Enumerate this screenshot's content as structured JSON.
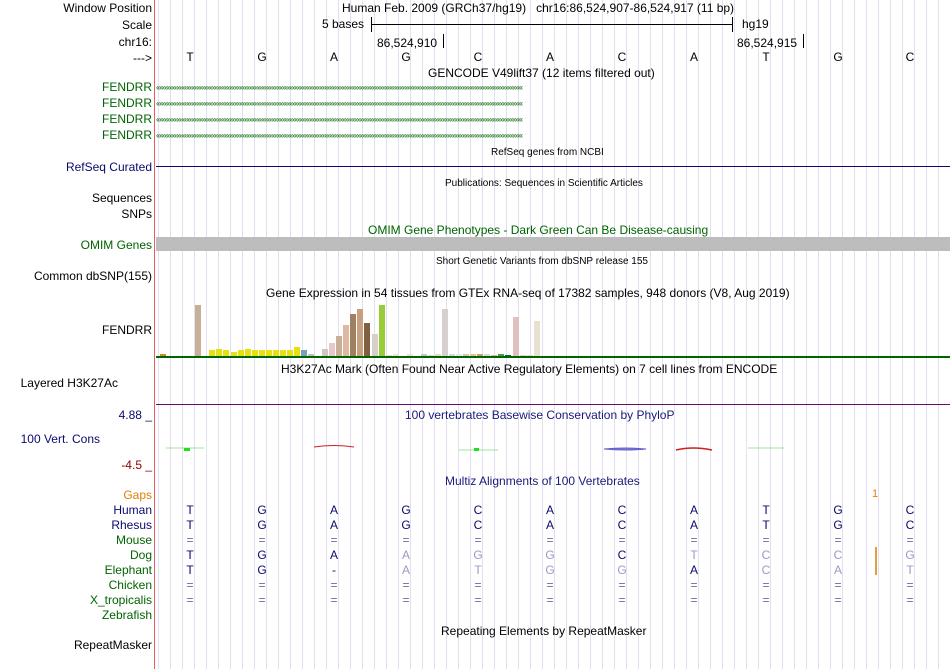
{
  "header": {
    "window_position_label": "Window Position",
    "scale_label": "Scale",
    "chrom_label": "chr16:",
    "strand_label": "--->",
    "assembly_text": "Human Feb. 2009 (GRCh37/hg19)",
    "position_text": "chr16:86,524,907-86,524,917 (11 bp)",
    "scale_text": "5 bases",
    "scale_db": "hg19",
    "coord_1": "86,524,910",
    "coord_2": "86,524,915"
  },
  "bases": [
    "T",
    "G",
    "A",
    "G",
    "C",
    "A",
    "C",
    "A",
    "T",
    "G",
    "C"
  ],
  "tracks": {
    "gencode": {
      "title": "GENCODE V49lift37 (12 items filtered out)",
      "genes": [
        "FENDRR",
        "FENDRR",
        "FENDRR",
        "FENDRR"
      ]
    },
    "refseq": {
      "title": "RefSeq genes from NCBI",
      "label": "RefSeq Curated"
    },
    "publications": {
      "title": "Publications: Sequences in Scientific Articles",
      "label_1": "Sequences",
      "label_2": "SNPs"
    },
    "omim": {
      "title": "OMIM Gene Phenotypes - Dark Green Can Be Disease-causing",
      "label": "OMIM Genes"
    },
    "dbsnp": {
      "title": "Short Genetic Variants from dbSNP release 155",
      "label": "Common dbSNP(155)"
    },
    "gtex": {
      "title": "Gene Expression in 54 tissues from GTEx RNA-seq of 17382 samples, 948 donors (V8, Aug 2019)",
      "label": "FENDRR"
    },
    "h3k27ac": {
      "title": "H3K27Ac Mark (Often Found Near Active Regulatory Elements) on 7 cell lines from ENCODE",
      "label": "Layered H3K27Ac"
    },
    "phylop": {
      "title": "100 vertebrates Basewise Conservation by PhyloP",
      "label": "100 Vert. Cons",
      "max": "4.88 _",
      "min": "-4.5 _"
    },
    "multiz": {
      "title": "Multiz Alignments of 100 Vertebrates",
      "gaps_label": "Gaps",
      "gap_marker": "1",
      "species": [
        {
          "name": "Human",
          "seq": [
            "T",
            "G",
            "A",
            "G",
            "C",
            "A",
            "C",
            "A",
            "T",
            "G",
            "C"
          ]
        },
        {
          "name": "Rhesus",
          "seq": [
            "T",
            "G",
            "A",
            "G",
            "C",
            "A",
            "C",
            "A",
            "T",
            "G",
            "C"
          ]
        },
        {
          "name": "Mouse",
          "seq": [
            "=",
            "=",
            "=",
            "=",
            "=",
            "=",
            "=",
            "=",
            "=",
            "=",
            "="
          ]
        },
        {
          "name": "Dog",
          "seq": [
            "T",
            "G",
            "A",
            "A",
            "G",
            "G",
            "C",
            "T",
            "C",
            "C",
            "G"
          ]
        },
        {
          "name": "Elephant",
          "seq": [
            "T",
            "G",
            "-",
            "A",
            "T",
            "G",
            "G",
            "A",
            "C",
            "A",
            "T"
          ]
        },
        {
          "name": "Chicken",
          "seq": [
            "=",
            "=",
            "=",
            "=",
            "=",
            "=",
            "=",
            "=",
            "=",
            "=",
            "="
          ]
        },
        {
          "name": "X_tropicalis",
          "seq": [
            "=",
            "=",
            "=",
            "=",
            "=",
            "=",
            "=",
            "=",
            "=",
            "=",
            "="
          ]
        },
        {
          "name": "Zebrafish",
          "seq": [
            "",
            "",
            "",
            "",
            "",
            "",
            "",
            "",
            "",
            "",
            ""
          ]
        }
      ]
    },
    "repeatmasker": {
      "title": "Repeating Elements by RepeatMasker",
      "label": "RepeatMasker"
    }
  },
  "gtex_values": [
    0.05,
    0.02,
    0,
    0,
    0,
    0.95,
    0.02,
    0.12,
    0.15,
    0.12,
    0.1,
    0.12,
    0.14,
    0.12,
    0.12,
    0.12,
    0.13,
    0.12,
    0.12,
    0.18,
    0.12,
    0.05,
    0.02,
    0.15,
    0.25,
    0.38,
    0.58,
    0.78,
    0.88,
    0.62,
    0.42,
    0.95,
    0.03,
    0.05,
    0.02,
    0.05,
    0.02,
    0.05,
    0.04,
    0.05,
    0.88,
    0.05,
    0.05,
    0.05,
    0.05,
    0.05,
    0.05,
    0.04,
    0.05,
    0.04,
    0.72,
    0.04,
    0.03,
    0.65
  ],
  "gtex_colors": [
    "#c89028",
    "#b0b0b0",
    "#b0b0b0",
    "#b0b0b0",
    "#b0b0b0",
    "#c8b098",
    "#f0e010",
    "#e8e010",
    "#e8e010",
    "#e8e010",
    "#e8e010",
    "#e8e010",
    "#e8e010",
    "#e8e010",
    "#e8e010",
    "#e8e010",
    "#e8e010",
    "#e8e010",
    "#e8e010",
    "#e8e010",
    "#78a0b8",
    "#c0c0c0",
    "#88c8d0",
    "#d0c8c0",
    "#e8c8c8",
    "#c8b098",
    "#e0b8a0",
    "#a08060",
    "#c8a080",
    "#806040",
    "#d8d0c8",
    "#98cc38",
    "#f0d8d0",
    "#e8e8c8",
    "#d0d0d0",
    "#f0e0d0",
    "#d8c8b8",
    "#c8c8c8",
    "#e0d8d0",
    "#d8e0c8",
    "#d8d0d0",
    "#d8d8d8",
    "#e8e8e8",
    "#d0c8b0",
    "#f0c090",
    "#c8a078",
    "#d8d8d8",
    "#d0b8a0",
    "#40a040",
    "#006838",
    "#e0c0c0",
    "#f0c8c8",
    "#e0d8c8",
    "#e8e0d0"
  ]
}
